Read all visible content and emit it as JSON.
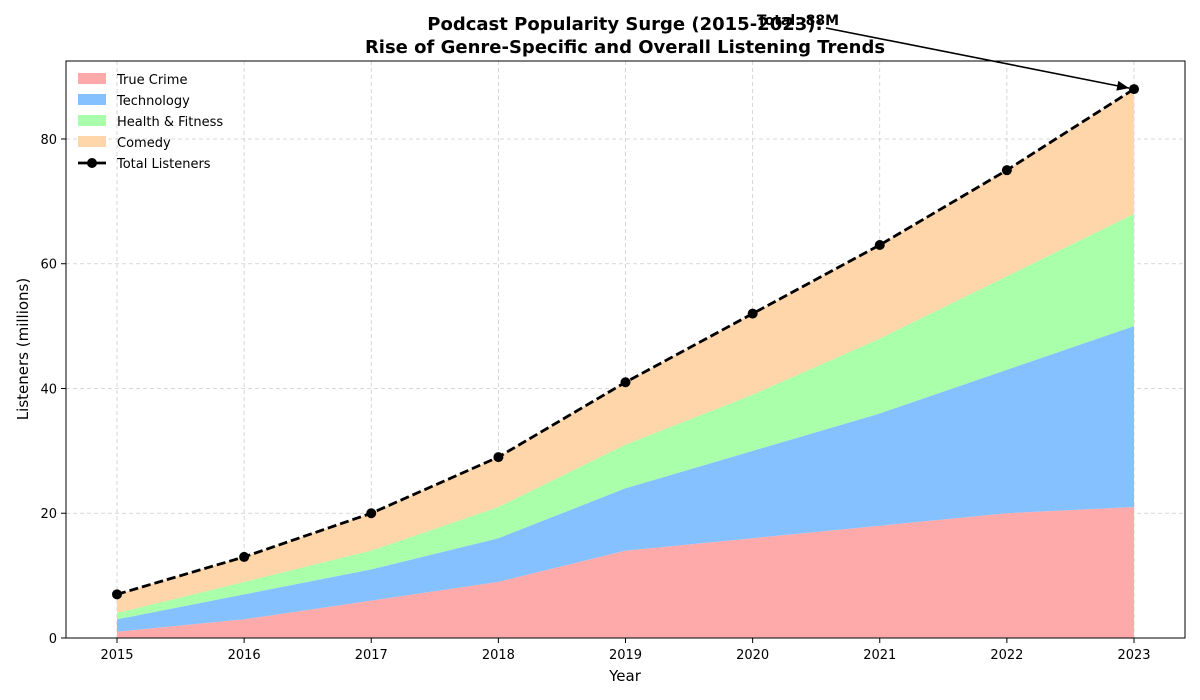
{
  "chart_data": {
    "type": "area",
    "title_line1": "Podcast Popularity Surge (2015-2023):",
    "title_line2": "Rise of Genre-Specific and Overall Listening Trends",
    "xlabel": "Year",
    "ylabel": "Listeners (millions)",
    "x": [
      "2015",
      "2016",
      "2017",
      "2018",
      "2019",
      "2020",
      "2021",
      "2022",
      "2023"
    ],
    "ylim": [
      0,
      92.5
    ],
    "yticks": [
      0,
      20,
      40,
      60,
      80
    ],
    "grid": true,
    "legend_position": "top-left",
    "series": [
      {
        "name": "True Crime",
        "color": "#ffaaaa",
        "values": [
          1,
          3,
          6,
          9,
          14,
          16,
          18,
          20,
          21
        ]
      },
      {
        "name": "Technology",
        "color": "#85c1ff",
        "values": [
          2,
          4,
          5,
          7,
          10,
          14,
          18,
          23,
          29
        ]
      },
      {
        "name": "Health & Fitness",
        "color": "#aaffaa",
        "values": [
          1,
          2,
          3,
          5,
          7,
          9,
          12,
          15,
          18
        ]
      },
      {
        "name": "Comedy",
        "color": "#ffd5aa",
        "values": [
          3,
          4,
          6,
          8,
          10,
          13,
          15,
          17,
          20
        ]
      }
    ],
    "total": {
      "name": "Total Listeners",
      "color": "#000000",
      "values": [
        7,
        13,
        20,
        29,
        41,
        52,
        63,
        75,
        88
      ]
    },
    "annotation": {
      "text": "Total: 88M",
      "x_index": 8
    }
  }
}
